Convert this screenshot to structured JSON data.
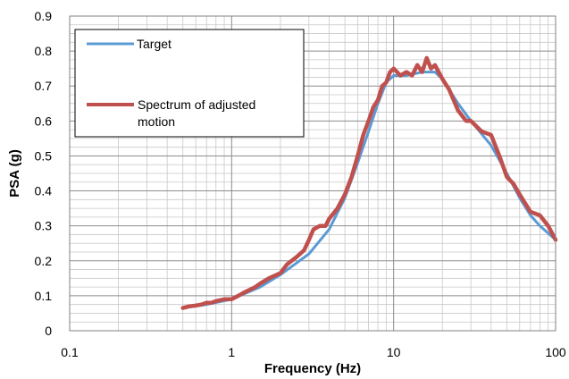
{
  "chart_data": {
    "type": "line",
    "xlabel": "Frequency (Hz)",
    "ylabel": "PSA (g)",
    "x_scale": "log",
    "xlim": [
      0.1,
      100
    ],
    "ylim": [
      0,
      0.9
    ],
    "x_ticks": [
      "0.1",
      "1",
      "10",
      "100"
    ],
    "y_ticks": [
      "0",
      "0.1",
      "0.2",
      "0.3",
      "0.4",
      "0.5",
      "0.6",
      "0.7",
      "0.8",
      "0.9"
    ],
    "grid": true,
    "legend_position": "top-left",
    "series": [
      {
        "name": "Target",
        "color": "#5b9bd5",
        "x": [
          0.5,
          0.7,
          1,
          1.5,
          2,
          3,
          4,
          5,
          6,
          7,
          8,
          9,
          10,
          12,
          15,
          18,
          20,
          25,
          30,
          40,
          50,
          60,
          70,
          80,
          100
        ],
        "y": [
          0.065,
          0.075,
          0.09,
          0.125,
          0.16,
          0.22,
          0.29,
          0.38,
          0.48,
          0.57,
          0.65,
          0.71,
          0.73,
          0.73,
          0.74,
          0.74,
          0.72,
          0.65,
          0.6,
          0.53,
          0.45,
          0.38,
          0.33,
          0.3,
          0.26
        ]
      },
      {
        "name": "Spectrum of adjusted motion",
        "color": "#c0504d",
        "x": [
          0.5,
          0.55,
          0.6,
          0.65,
          0.7,
          0.75,
          0.8,
          0.9,
          1,
          1.1,
          1.2,
          1.4,
          1.5,
          1.7,
          2,
          2.2,
          2.5,
          2.8,
          3,
          3.2,
          3.5,
          3.8,
          4,
          4.5,
          5,
          5.5,
          6,
          6.5,
          7,
          7.5,
          8,
          8.5,
          9,
          9.5,
          10,
          11,
          12,
          13,
          14,
          15,
          16,
          17,
          18,
          20,
          22,
          25,
          28,
          30,
          35,
          40,
          45,
          50,
          55,
          60,
          70,
          80,
          90,
          100
        ],
        "y": [
          0.065,
          0.07,
          0.072,
          0.075,
          0.08,
          0.08,
          0.085,
          0.09,
          0.09,
          0.1,
          0.11,
          0.125,
          0.135,
          0.15,
          0.165,
          0.19,
          0.21,
          0.23,
          0.26,
          0.29,
          0.3,
          0.3,
          0.32,
          0.35,
          0.39,
          0.44,
          0.5,
          0.56,
          0.6,
          0.64,
          0.66,
          0.7,
          0.71,
          0.74,
          0.75,
          0.73,
          0.74,
          0.73,
          0.76,
          0.74,
          0.78,
          0.75,
          0.76,
          0.72,
          0.69,
          0.63,
          0.6,
          0.6,
          0.57,
          0.56,
          0.5,
          0.44,
          0.42,
          0.39,
          0.34,
          0.33,
          0.3,
          0.26
        ]
      }
    ]
  }
}
